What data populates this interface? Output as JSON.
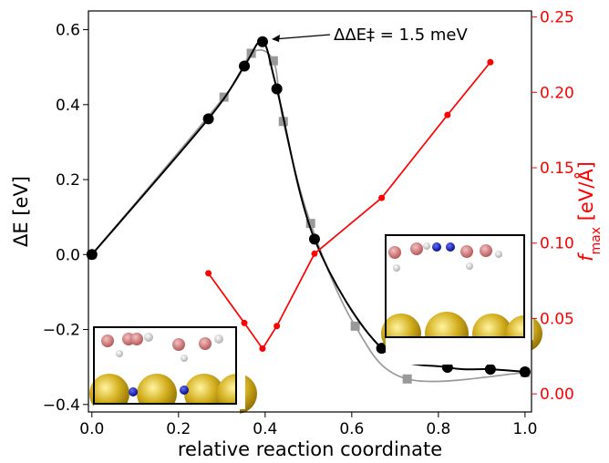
{
  "chart_data": {
    "type": "line",
    "xlabel": "relative reaction coordinate",
    "ylabel": "ΔE [eV]",
    "y2label": [
      "f",
      "max",
      " [eV/Å]"
    ],
    "annotation": "ΔΔE‡ = 1.5 meV",
    "xlim": [
      -0.008,
      1.015
    ],
    "ylim": [
      -0.42,
      0.65
    ],
    "y2lim": [
      -0.012,
      0.254
    ],
    "xticks": [
      {
        "value": 0,
        "label": "0.0"
      },
      {
        "value": 0.2,
        "label": "0.2"
      },
      {
        "value": 0.4,
        "label": "0.4"
      },
      {
        "value": 0.6,
        "label": "0.6"
      },
      {
        "value": 0.8,
        "label": "0.8"
      },
      {
        "value": 1,
        "label": "1.0"
      }
    ],
    "yticks": [
      {
        "value": -0.4,
        "label": "−0.4"
      },
      {
        "value": -0.2,
        "label": "−0.2"
      },
      {
        "value": 0,
        "label": "0.0"
      },
      {
        "value": 0.2,
        "label": "0.2"
      },
      {
        "value": 0.4,
        "label": "0.4"
      },
      {
        "value": 0.6,
        "label": "0.6"
      }
    ],
    "y2ticks": [
      {
        "value": 0,
        "label": "0.00"
      },
      {
        "value": 0.05,
        "label": "0.05"
      },
      {
        "value": 0.1,
        "label": "0.10"
      },
      {
        "value": 0.15,
        "label": "0.15"
      },
      {
        "value": 0.2,
        "label": "0.20"
      },
      {
        "value": 0.25,
        "label": "0.25"
      }
    ],
    "y2color": "#ff0000",
    "series": [
      {
        "color": "#999999",
        "marker": "square",
        "x": [
          0,
          0.305,
          0.368,
          0.419,
          0.442,
          0.505,
          0.608,
          0.728,
          1.0
        ],
        "values": [
          0,
          0.42,
          0.537,
          0.517,
          0.355,
          0.083,
          -0.191,
          -0.332,
          -0.315
        ]
      },
      {
        "color": "#000000",
        "marker": "circle",
        "x": [
          0,
          0.269,
          0.352,
          0.394,
          0.427,
          0.514,
          0.669,
          0.821,
          0.92,
          1.0
        ],
        "values": [
          0,
          0.362,
          0.503,
          0.568,
          0.442,
          0.041,
          -0.25,
          -0.301,
          -0.306,
          -0.313
        ]
      },
      {
        "color": "#ff0000",
        "marker": "dot",
        "axis": "y2",
        "x": [
          0.269,
          0.352,
          0.394,
          0.427,
          0.514,
          0.669,
          0.821,
          0.92
        ],
        "values": [
          0.08,
          0.047,
          0.03,
          0.045,
          0.093,
          0.13,
          0.185,
          0.22
        ]
      }
    ]
  }
}
